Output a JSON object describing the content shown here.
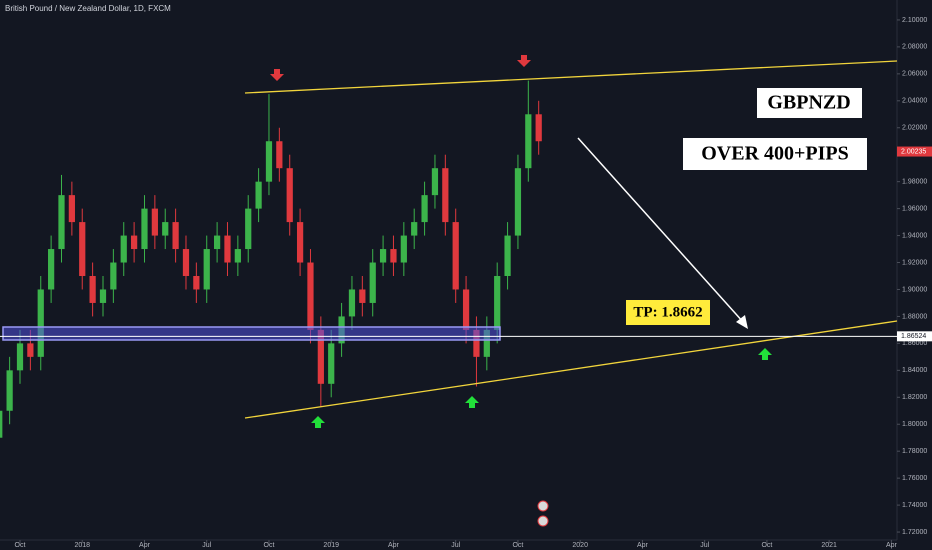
{
  "chart_data": {
    "type": "candlestick",
    "title": "British Pound / New Zealand Dollar, 1D, FXCM",
    "annotations": [
      "GBPNZD",
      "OVER 400+PIPS",
      "TP: 1.8662"
    ],
    "x": [
      -1,
      -0.5,
      0,
      0.5,
      1,
      1.5,
      2,
      2.5,
      3,
      3.5,
      4,
      4.5,
      5,
      5.5,
      6,
      6.5,
      7,
      7.5,
      8,
      8.5,
      9,
      9.5,
      10,
      10.5,
      11,
      11.5,
      12,
      12.5,
      13,
      13.5,
      14,
      14.5,
      15,
      15.5,
      16,
      16.5,
      17,
      17.5,
      18,
      18.5,
      19,
      19.5,
      20,
      20.5,
      21,
      21.5,
      22,
      22.5,
      23,
      23.5,
      24,
      24.5,
      25
    ],
    "open": [
      1.79,
      1.81,
      1.84,
      1.86,
      1.85,
      1.9,
      1.93,
      1.97,
      1.95,
      1.91,
      1.89,
      1.9,
      1.92,
      1.94,
      1.93,
      1.96,
      1.94,
      1.95,
      1.93,
      1.91,
      1.9,
      1.93,
      1.94,
      1.92,
      1.93,
      1.96,
      1.98,
      2.01,
      1.99,
      1.95,
      1.92,
      1.87,
      1.83,
      1.86,
      1.88,
      1.9,
      1.89,
      1.92,
      1.93,
      1.92,
      1.94,
      1.95,
      1.97,
      1.99,
      1.95,
      1.9,
      1.87,
      1.85,
      1.87,
      1.91,
      1.94,
      1.99,
      2.03
    ],
    "high": [
      1.82,
      1.85,
      1.87,
      1.87,
      1.91,
      1.94,
      1.985,
      1.98,
      1.96,
      1.92,
      1.91,
      1.93,
      1.95,
      1.95,
      1.97,
      1.97,
      1.96,
      1.96,
      1.94,
      1.92,
      1.94,
      1.95,
      1.95,
      1.94,
      1.97,
      1.99,
      2.045,
      2.02,
      2.0,
      1.96,
      1.93,
      1.88,
      1.87,
      1.89,
      1.91,
      1.91,
      1.93,
      1.94,
      1.94,
      1.95,
      1.96,
      1.98,
      2.0,
      2.0,
      1.96,
      1.91,
      1.88,
      1.88,
      1.92,
      1.95,
      2.0,
      2.055,
      2.04
    ],
    "low": [
      1.785,
      1.8,
      1.83,
      1.84,
      1.84,
      1.89,
      1.92,
      1.94,
      1.9,
      1.88,
      1.88,
      1.89,
      1.91,
      1.92,
      1.92,
      1.93,
      1.93,
      1.92,
      1.9,
      1.89,
      1.89,
      1.92,
      1.91,
      1.91,
      1.92,
      1.95,
      1.97,
      1.98,
      1.94,
      1.91,
      1.86,
      1.813,
      1.82,
      1.85,
      1.87,
      1.88,
      1.88,
      1.91,
      1.91,
      1.91,
      1.93,
      1.94,
      1.96,
      1.94,
      1.89,
      1.86,
      1.828,
      1.84,
      1.86,
      1.9,
      1.93,
      1.98,
      2.0
    ],
    "close": [
      1.81,
      1.84,
      1.86,
      1.85,
      1.9,
      1.93,
      1.97,
      1.95,
      1.91,
      1.89,
      1.9,
      1.92,
      1.94,
      1.93,
      1.96,
      1.94,
      1.95,
      1.93,
      1.91,
      1.9,
      1.93,
      1.94,
      1.92,
      1.93,
      1.96,
      1.98,
      2.01,
      1.99,
      1.95,
      1.92,
      1.87,
      1.83,
      1.86,
      1.88,
      1.9,
      1.89,
      1.92,
      1.93,
      1.92,
      1.94,
      1.95,
      1.97,
      1.99,
      1.95,
      1.9,
      1.87,
      1.85,
      1.87,
      1.91,
      1.94,
      1.99,
      2.03,
      2.01
    ],
    "up_color": "#3cb44b",
    "down_color": "#e0393e",
    "last_price": 2.00235,
    "last_price_color": "#e0393e",
    "level": 1.86524,
    "xlim": [
      -0.964,
      42.27
    ],
    "xticks": [
      {
        "value": 0,
        "label": "Oct"
      },
      {
        "value": 3,
        "label": "2018"
      },
      {
        "value": 6,
        "label": "Apr"
      },
      {
        "value": 9,
        "label": "Jul"
      },
      {
        "value": 12,
        "label": "Oct"
      },
      {
        "value": 15,
        "label": "2019"
      },
      {
        "value": 18,
        "label": "Apr"
      },
      {
        "value": 21,
        "label": "Jul"
      },
      {
        "value": 24,
        "label": "Oct"
      },
      {
        "value": 27,
        "label": "2020"
      },
      {
        "value": 30,
        "label": "Apr"
      },
      {
        "value": 33,
        "label": "Jul"
      },
      {
        "value": 36,
        "label": "Oct"
      },
      {
        "value": 39,
        "label": "2021"
      },
      {
        "value": 42,
        "label": "Apr"
      }
    ],
    "ylim": [
      1.7141,
      2.1148
    ],
    "yticks": [
      {
        "value": 2.1,
        "label": "2.10000"
      },
      {
        "value": 2.08,
        "label": "2.08000"
      },
      {
        "value": 2.06,
        "label": "2.06000"
      },
      {
        "value": 2.04,
        "label": "2.04000"
      },
      {
        "value": 2.02,
        "label": "2.02000"
      },
      {
        "value": 2.0,
        "label": "2.00000"
      },
      {
        "value": 1.98,
        "label": "1.98000"
      },
      {
        "value": 1.96,
        "label": "1.96000"
      },
      {
        "value": 1.94,
        "label": "1.94000"
      },
      {
        "value": 1.92,
        "label": "1.92000"
      },
      {
        "value": 1.9,
        "label": "1.90000"
      },
      {
        "value": 1.88,
        "label": "1.88000"
      },
      {
        "value": 1.86,
        "label": "1.86000"
      },
      {
        "value": 1.84,
        "label": "1.84000"
      },
      {
        "value": 1.82,
        "label": "1.82000"
      },
      {
        "value": 1.8,
        "label": "1.80000"
      },
      {
        "value": 1.78,
        "label": "1.78000"
      },
      {
        "value": 1.76,
        "label": "1.76000"
      },
      {
        "value": 1.74,
        "label": "1.74000"
      },
      {
        "value": 1.72,
        "label": "1.72000"
      }
    ],
    "grid": false
  }
}
